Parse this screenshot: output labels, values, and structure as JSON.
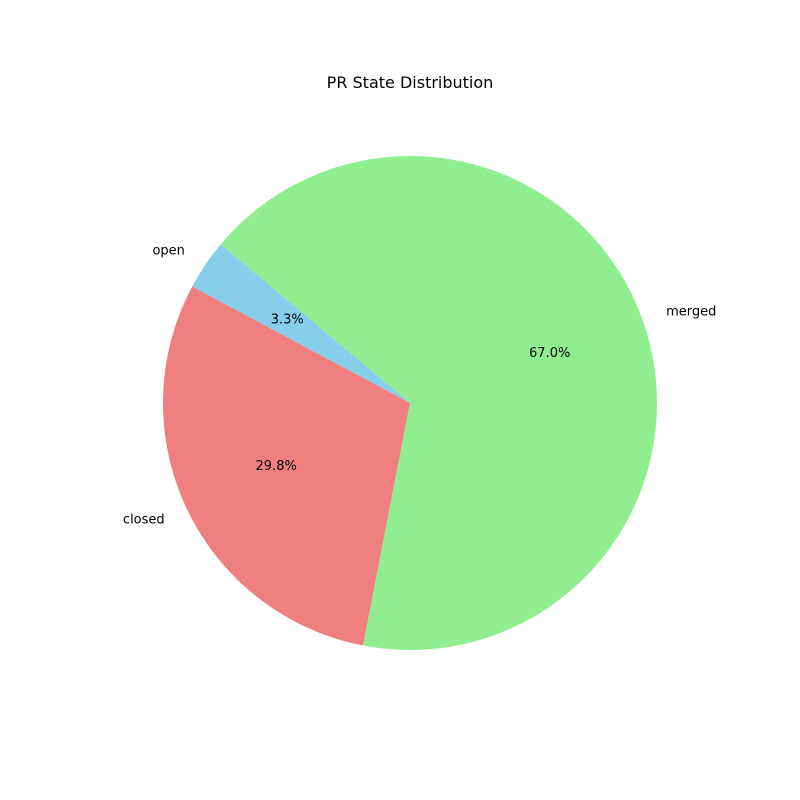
{
  "chart_data": {
    "type": "pie",
    "title": "PR State Distribution",
    "slices": [
      {
        "label": "open",
        "value": 3.3,
        "pct_label": "3.3%",
        "color": "#87CEEB"
      },
      {
        "label": "closed",
        "value": 29.8,
        "pct_label": "29.8%",
        "color": "#F08080"
      },
      {
        "label": "merged",
        "value": 67.0,
        "pct_label": "67.0%",
        "color": "#90EE90"
      }
    ],
    "start_angle_deg": 140,
    "direction": "counterclockwise",
    "legend": "none"
  }
}
